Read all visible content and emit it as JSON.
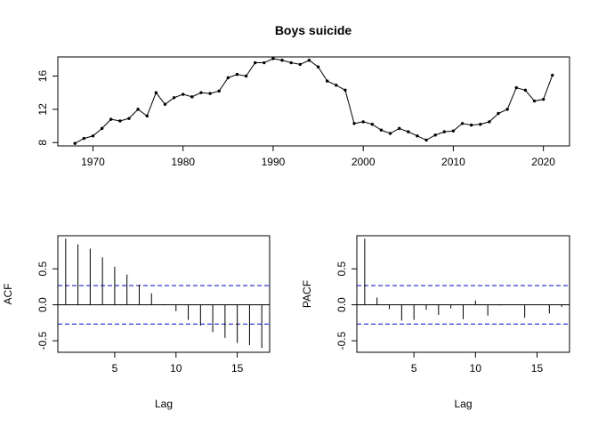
{
  "chart_data": [
    {
      "type": "line",
      "title": "Boys suicide",
      "xlabel": "",
      "ylabel": "",
      "xlim": [
        1966.1,
        2022.9
      ],
      "ylim": [
        7.6,
        18.3
      ],
      "xticks": [
        1970,
        1980,
        1990,
        2000,
        2010,
        2020
      ],
      "yticks": [
        8,
        12,
        16
      ],
      "grid": false,
      "marker": "point",
      "color": "#000000",
      "x": [
        1968,
        1969,
        1970,
        1971,
        1972,
        1973,
        1974,
        1975,
        1976,
        1977,
        1978,
        1979,
        1980,
        1981,
        1982,
        1983,
        1984,
        1985,
        1986,
        1987,
        1988,
        1989,
        1990,
        1991,
        1992,
        1993,
        1994,
        1995,
        1996,
        1997,
        1998,
        1999,
        2000,
        2001,
        2002,
        2003,
        2004,
        2005,
        2006,
        2007,
        2008,
        2009,
        2010,
        2011,
        2012,
        2013,
        2014,
        2015,
        2016,
        2017,
        2018,
        2019,
        2020,
        2021
      ],
      "y": [
        7.9,
        8.5,
        8.8,
        9.7,
        10.8,
        10.6,
        10.9,
        12.0,
        11.2,
        14.0,
        12.6,
        13.4,
        13.8,
        13.5,
        14.0,
        13.9,
        14.2,
        15.8,
        16.2,
        16.0,
        17.6,
        17.6,
        18.1,
        17.9,
        17.6,
        17.4,
        17.9,
        17.1,
        15.4,
        14.9,
        14.3,
        10.3,
        10.5,
        10.2,
        9.5,
        9.1,
        9.7,
        9.3,
        8.8,
        8.3,
        8.9,
        9.3,
        9.4,
        10.3,
        10.1,
        10.2,
        10.5,
        11.5,
        12.0,
        14.6,
        14.3,
        13.0,
        13.2,
        16.1
      ]
    },
    {
      "type": "bar",
      "title": "",
      "xlabel": "Lag",
      "ylabel": "ACF",
      "xlim": [
        0.36,
        17.64
      ],
      "ylim": [
        -0.66,
        0.96
      ],
      "xticks": [
        5,
        10,
        15
      ],
      "yticks": [
        -0.5,
        0.0,
        0.5
      ],
      "ytick_labels": [
        "-0.5",
        "0.0",
        "0.5"
      ],
      "conf_limit": 0.267,
      "conf_color": "#0000ff",
      "lags": [
        1,
        2,
        3,
        4,
        5,
        6,
        7,
        8,
        9,
        10,
        11,
        12,
        13,
        14,
        15,
        16,
        17
      ],
      "values": [
        0.92,
        0.84,
        0.78,
        0.66,
        0.53,
        0.42,
        0.28,
        0.16,
        0.01,
        -0.09,
        -0.21,
        -0.29,
        -0.38,
        -0.46,
        -0.53,
        -0.56,
        -0.6
      ]
    },
    {
      "type": "bar",
      "title": "",
      "xlabel": "Lag",
      "ylabel": "PACF",
      "xlim": [
        0.36,
        17.64
      ],
      "ylim": [
        -0.66,
        0.96
      ],
      "xticks": [
        5,
        10,
        15
      ],
      "yticks": [
        -0.5,
        0.0,
        0.5
      ],
      "ytick_labels": [
        "-0.5",
        "0.0",
        "0.5"
      ],
      "conf_limit": 0.267,
      "conf_color": "#0000ff",
      "lags": [
        1,
        2,
        3,
        4,
        5,
        6,
        7,
        8,
        9,
        10,
        11,
        12,
        13,
        14,
        15,
        16,
        17
      ],
      "values": [
        0.92,
        0.1,
        -0.06,
        -0.22,
        -0.21,
        -0.07,
        -0.14,
        -0.05,
        -0.2,
        0.06,
        -0.15,
        -0.01,
        0.0,
        -0.18,
        0.0,
        -0.12,
        -0.03
      ]
    }
  ]
}
